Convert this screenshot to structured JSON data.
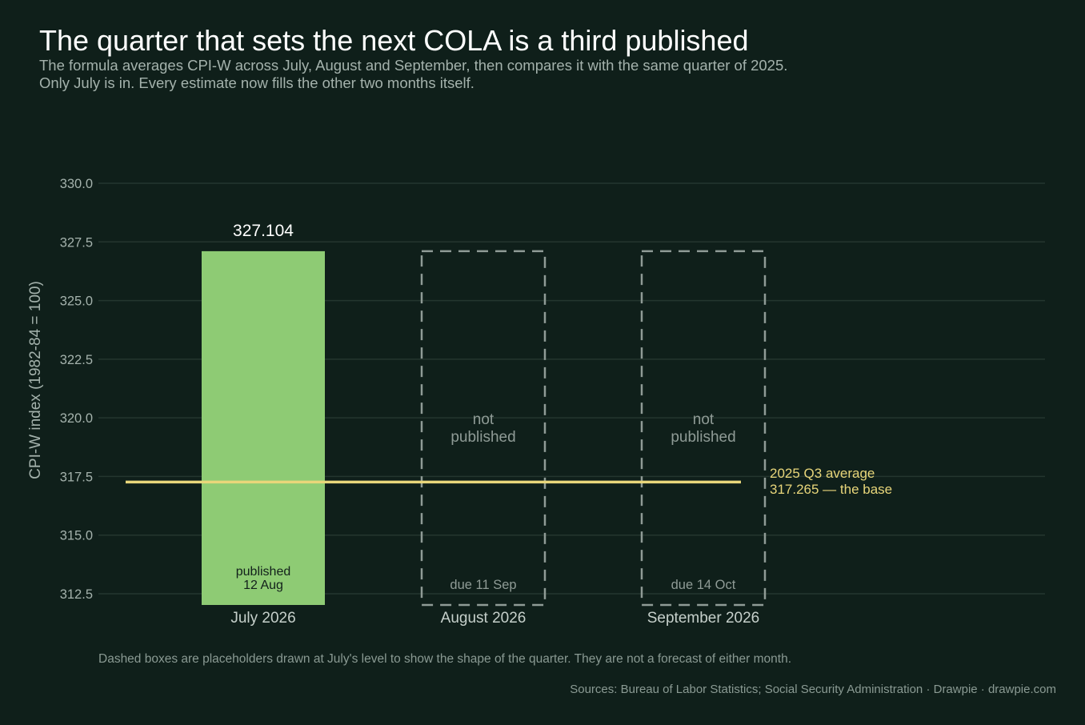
{
  "title": "The quarter that sets the next COLA is a third published",
  "subtitle": "The formula averages CPI-W across July, August and September, then compares it with the same quarter of 2025. Only July is in. Every estimate now fills the other two months itself.",
  "footnote": "Dashed boxes are placeholders drawn at July's level to show the shape of the quarter. They are not a forecast of either month.",
  "sources": "Sources: Bureau of Labor Statistics; Social Security Administration  ·  Drawpie · drawpie.com",
  "colors": {
    "background": "#0f1f1a",
    "published_bar": "#8ecb74",
    "placeholder": "#8f9b96",
    "baseline": "#e8d67a",
    "grid": "#24362f"
  },
  "chart_data": {
    "type": "bar",
    "ylabel": "CPI-W index (1982-84 = 100)",
    "xlabel": "",
    "ylim": [
      312,
      330.6
    ],
    "yticks": [
      "312.5",
      "315.0",
      "317.5",
      "320.0",
      "322.5",
      "325.0",
      "327.5",
      "330.0"
    ],
    "ytick_values": [
      312.5,
      315,
      317.5,
      320,
      322.5,
      325,
      327.5,
      330
    ],
    "grid": true,
    "categories": [
      "July 2026",
      "August 2026",
      "September 2026"
    ],
    "bars": [
      {
        "category": "July 2026",
        "value": 327.104,
        "value_label": "327.104",
        "status": "published",
        "note_lines": [
          "published",
          "12 Aug"
        ]
      },
      {
        "category": "August 2026",
        "value": 327.104,
        "status": "placeholder",
        "center_lines": [
          "not",
          "published"
        ],
        "note_lines": [
          "due 11 Sep"
        ]
      },
      {
        "category": "September 2026",
        "value": 327.104,
        "status": "placeholder",
        "center_lines": [
          "not",
          "published"
        ],
        "note_lines": [
          "due 14 Oct"
        ]
      }
    ],
    "reference_line": {
      "value": 317.265,
      "label_lines": [
        "2025 Q3 average",
        "317.265 — the base"
      ]
    }
  }
}
